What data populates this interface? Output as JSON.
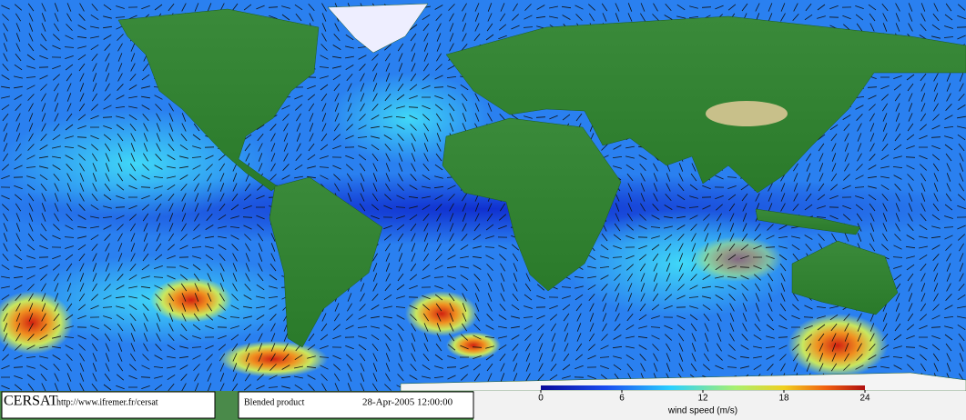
{
  "header": {
    "brand": "CERSAT",
    "url": "http://www.ifremer.fr/cersat"
  },
  "product": {
    "name": "Blended product",
    "date": "28-Apr-2005 12:00:00"
  },
  "colorbar": {
    "label": "wind speed (m/s)",
    "ticks": [
      0,
      6,
      12,
      18,
      24
    ]
  }
}
